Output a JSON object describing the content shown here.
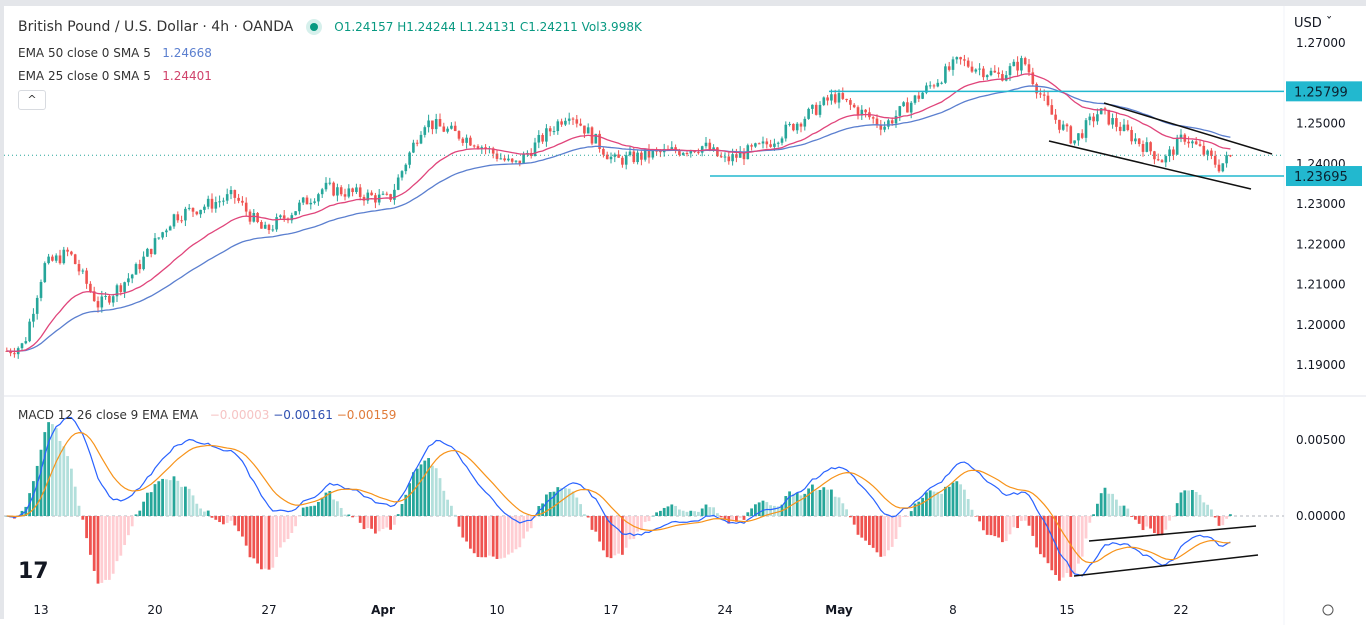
{
  "header": {
    "title": "British Pound / U.S. Dollar · 4h · OANDA",
    "ohlc": {
      "o": "O1.24157",
      "h": "H1.24244",
      "l": "L1.24131",
      "c": "C1.24211",
      "vol": "Vol3.998K"
    }
  },
  "indicators": [
    {
      "label": "EMA 50 close 0 SMA 5",
      "value": "1.24668",
      "color": "#5b7fcf"
    },
    {
      "label": "EMA 25 close 0 SMA 5",
      "value": "1.24401",
      "color": "#d0436b"
    }
  ],
  "collapse_icon": "chevron-up-icon",
  "macd": {
    "label": "MACD 12 26 close 9 EMA EMA",
    "hist": "−0.00003",
    "macd": "−0.00161",
    "signal": "−0.00159"
  },
  "currency": "USD",
  "chart_data": {
    "type": "candlestick",
    "price_ticks": [
      "1.27000",
      "1.25000",
      "1.24000",
      "1.23000",
      "1.22000",
      "1.21000",
      "1.20000",
      "1.19000"
    ],
    "ylim": [
      1.19,
      1.27
    ],
    "levels": [
      {
        "label": "1.25799",
        "value": 1.25799
      },
      {
        "label": "1.23695",
        "value": 1.23695
      }
    ],
    "last_price": 1.24211,
    "macd_ticks": [
      "0.00500",
      "0.00000"
    ],
    "macd_ylim": [
      -0.0045,
      0.0075
    ],
    "x_labels": [
      {
        "label": "13",
        "day": 0
      },
      {
        "label": "20",
        "day": 5
      },
      {
        "label": "27",
        "day": 10
      },
      {
        "label": "Apr",
        "day": 15
      },
      {
        "label": "10",
        "day": 20
      },
      {
        "label": "17",
        "day": 25
      },
      {
        "label": "24",
        "day": 30
      },
      {
        "label": "May",
        "day": 35
      },
      {
        "label": "8",
        "day": 40
      },
      {
        "label": "15",
        "day": 45
      },
      {
        "label": "22",
        "day": 50
      }
    ],
    "close_path": [
      [
        -1.5,
        1.1935
      ],
      [
        -0.75,
        1.195
      ],
      [
        0.13,
        1.2146
      ],
      [
        1.23,
        1.218
      ],
      [
        2.54,
        1.2047
      ],
      [
        4.08,
        1.213
      ],
      [
        5.83,
        1.227
      ],
      [
        8.46,
        1.232
      ],
      [
        9.78,
        1.223
      ],
      [
        12.41,
        1.234
      ],
      [
        15.26,
        1.231
      ],
      [
        16.8,
        1.2506
      ],
      [
        19,
        1.2456
      ],
      [
        20.75,
        1.2394
      ],
      [
        23.16,
        1.253
      ],
      [
        25.13,
        1.2407
      ],
      [
        26.45,
        1.242
      ],
      [
        29.08,
        1.2444
      ],
      [
        29.96,
        1.2407
      ],
      [
        31.7,
        1.2444
      ],
      [
        34.78,
        1.2568
      ],
      [
        36.97,
        1.2494
      ],
      [
        38.73,
        1.258
      ],
      [
        40.26,
        1.2655
      ],
      [
        42.02,
        1.2618
      ],
      [
        43.11,
        1.2655
      ],
      [
        44.21,
        1.253
      ],
      [
        45.31,
        1.2456
      ],
      [
        46.4,
        1.253
      ],
      [
        49.25,
        1.2407
      ],
      [
        50.13,
        1.2469
      ],
      [
        51.67,
        1.2394
      ],
      [
        52.24,
        1.2421
      ]
    ],
    "colors": {
      "up": "#26a69a",
      "down": "#ef5350",
      "ema50": "#5b7fcf",
      "ema25": "#e0457b",
      "level": "#22b8cf",
      "macd": "#2962ff",
      "signal": "#f7931a"
    }
  }
}
